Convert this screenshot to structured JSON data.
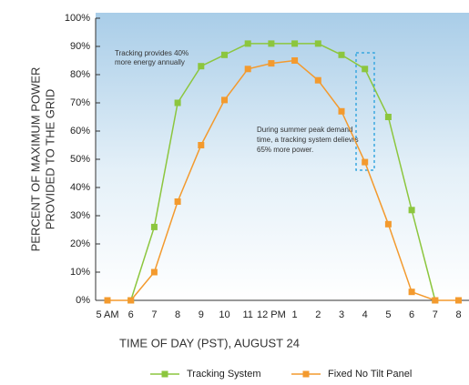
{
  "chart_data": {
    "type": "line",
    "y_label": [
      "PERCENT OF MAXIMUM POWER",
      "PROVIDED TO THE GRID"
    ],
    "x_label": "TIME OF DAY (PST),  AUGUST 24",
    "categories": [
      "5 AM",
      "6",
      "7",
      "8",
      "9",
      "10",
      "11",
      "12 PM",
      "1",
      "2",
      "3",
      "4",
      "5",
      "6",
      "7",
      "8"
    ],
    "series": [
      {
        "name": "Tracking System",
        "color": "#8cc63e",
        "values": [
          null,
          0,
          26,
          70,
          83,
          87,
          91,
          91,
          91,
          91,
          87,
          82,
          65,
          32,
          0,
          null
        ]
      },
      {
        "name": "Fixed No Tilt Panel",
        "color": "#f39a2e",
        "values": [
          0,
          0,
          10,
          35,
          55,
          71,
          82,
          84,
          85,
          78,
          67,
          49,
          27,
          3,
          0,
          0
        ]
      }
    ],
    "ylim": [
      0,
      100
    ],
    "yticks": [
      {
        "value": 0,
        "label": "0%"
      },
      {
        "value": 10,
        "label": "10%"
      },
      {
        "value": 20,
        "label": "20%"
      },
      {
        "value": 30,
        "label": "30%"
      },
      {
        "value": 40,
        "label": "40%"
      },
      {
        "value": 50,
        "label": "50%"
      },
      {
        "value": 60,
        "label": "60%"
      },
      {
        "value": 70,
        "label": "70%"
      },
      {
        "value": 80,
        "label": "80%"
      },
      {
        "value": 90,
        "label": "90%"
      },
      {
        "value": 100,
        "label": "100%"
      }
    ],
    "annotations": [
      [
        "Tracking provides 40%",
        "more energy annually"
      ],
      [
        "During summer peak  demand",
        "time, a tracking  system delievrs",
        "65% more power."
      ]
    ],
    "legend": "bottom"
  }
}
